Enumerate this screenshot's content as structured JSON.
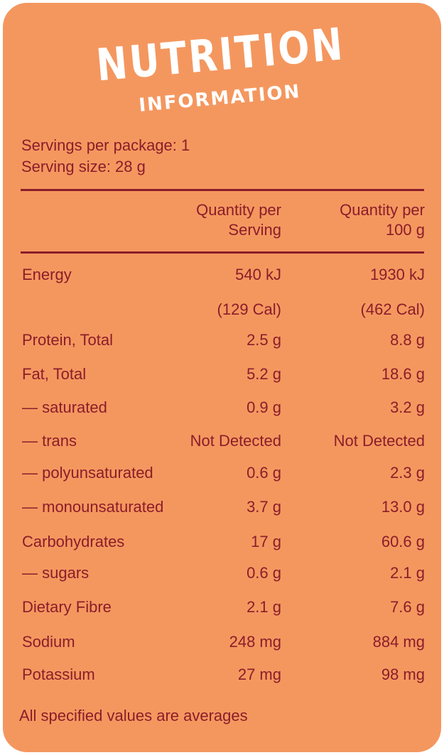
{
  "title": {
    "line1": "NUTRITION",
    "line2": "INFORMATION"
  },
  "servings": {
    "per_package": "Servings per package: 1",
    "size": "Serving size: 28 g"
  },
  "headers": {
    "per_serving_l1": "Quantity per",
    "per_serving_l2": "Serving",
    "per_100g_l1": "Quantity per",
    "per_100g_l2": "100 g"
  },
  "rows": [
    {
      "label": "Energy",
      "serving": "540 kJ",
      "per100": "1930 kJ"
    },
    {
      "label": "",
      "serving": "(129 Cal)",
      "per100": "(462 Cal)"
    },
    {
      "label": "Protein, Total",
      "serving": "2.5 g",
      "per100": "8.8 g"
    },
    {
      "label": "Fat, Total",
      "serving": "5.2 g",
      "per100": "18.6 g"
    },
    {
      "label": "— saturated",
      "serving": "0.9 g",
      "per100": "3.2 g"
    },
    {
      "label": "— trans",
      "serving": "Not Detected",
      "per100": "Not Detected"
    },
    {
      "label": "— polyunsaturated",
      "serving": "0.6 g",
      "per100": "2.3 g"
    },
    {
      "label": "— monounsaturated",
      "serving": "3.7 g",
      "per100": "13.0  g"
    },
    {
      "label": "Carbohydrates",
      "serving": "17 g",
      "per100": "60.6 g"
    },
    {
      "label": "— sugars",
      "serving": "0.6 g",
      "per100": "2.1 g"
    },
    {
      "label": "Dietary Fibre",
      "serving": "2.1 g",
      "per100": "7.6 g"
    },
    {
      "label": "Sodium",
      "serving": "248 mg",
      "per100": "884 mg"
    },
    {
      "label": "Potassium",
      "serving": "27 mg",
      "per100": "98 mg"
    }
  ],
  "footer": "All specified values are averages",
  "colors": {
    "background": "#f4975f",
    "text": "#8b1d2a",
    "title": "#ffffff"
  }
}
